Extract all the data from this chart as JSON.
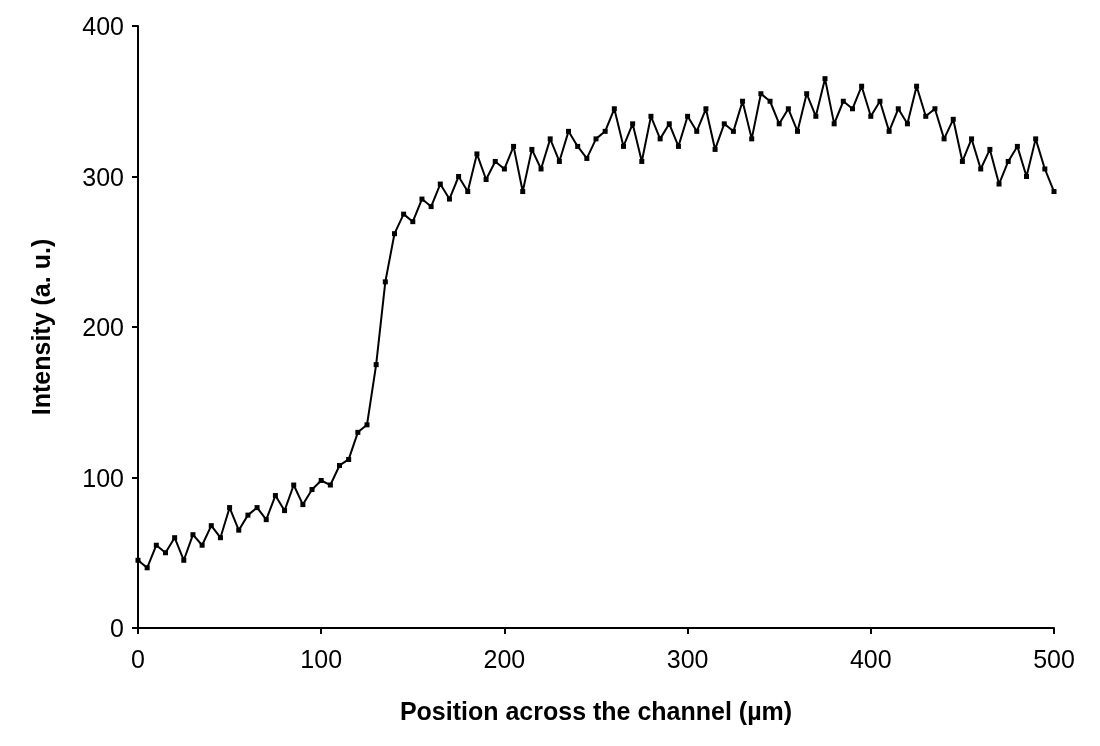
{
  "chart_data": {
    "type": "line",
    "xlabel": "Position across the channel (µm)",
    "ylabel": "Intensity (a. u.)",
    "x": [
      0,
      5,
      10,
      15,
      20,
      25,
      30,
      35,
      40,
      45,
      50,
      55,
      60,
      65,
      70,
      75,
      80,
      85,
      90,
      95,
      100,
      105,
      110,
      115,
      120,
      125,
      130,
      135,
      140,
      145,
      150,
      155,
      160,
      165,
      170,
      175,
      180,
      185,
      190,
      195,
      200,
      205,
      210,
      215,
      220,
      225,
      230,
      235,
      240,
      245,
      250,
      255,
      260,
      265,
      270,
      275,
      280,
      285,
      290,
      295,
      300,
      305,
      310,
      315,
      320,
      325,
      330,
      335,
      340,
      345,
      350,
      355,
      360,
      365,
      370,
      375,
      380,
      385,
      390,
      395,
      400,
      405,
      410,
      415,
      420,
      425,
      430,
      435,
      440,
      445,
      450,
      455,
      460,
      465,
      470,
      475,
      480,
      485,
      490,
      495,
      500
    ],
    "series": [
      {
        "color": "#000000",
        "values": [
          45,
          40,
          55,
          50,
          60,
          45,
          62,
          55,
          68,
          60,
          80,
          65,
          75,
          80,
          72,
          88,
          78,
          95,
          82,
          92,
          98,
          95,
          108,
          112,
          130,
          135,
          175,
          230,
          262,
          275,
          270,
          285,
          280,
          295,
          285,
          300,
          290,
          315,
          298,
          310,
          305,
          320,
          290,
          318,
          305,
          325,
          310,
          330,
          320,
          312,
          325,
          330,
          345,
          320,
          335,
          310,
          340,
          325,
          335,
          320,
          340,
          330,
          345,
          318,
          335,
          330,
          350,
          325,
          355,
          350,
          335,
          345,
          330,
          355,
          340,
          365,
          335,
          350,
          345,
          360,
          340,
          350,
          330,
          345,
          335,
          360,
          340,
          345,
          325,
          338,
          310,
          325,
          305,
          318,
          295,
          310,
          320,
          300,
          325,
          305,
          290
        ]
      }
    ],
    "xlim": [
      0,
      500
    ],
    "xticks": [
      0,
      100,
      200,
      300,
      400,
      500
    ],
    "ylim": [
      0,
      400
    ],
    "yticks": [
      0,
      100,
      200,
      300,
      400
    ],
    "grid": false,
    "marker": "square",
    "line_style": "solid"
  }
}
